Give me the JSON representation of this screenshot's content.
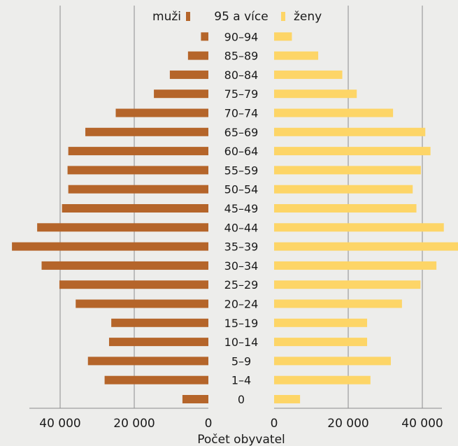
{
  "chart_data": {
    "type": "bar",
    "orientation": "horizontal-pyramid",
    "categories": [
      "0",
      "1–4",
      "5–9",
      "10–14",
      "15–19",
      "20–24",
      "25–29",
      "30–34",
      "35–39",
      "40–44",
      "45–49",
      "50–54",
      "55–59",
      "60–64",
      "65–69",
      "70–74",
      "75–79",
      "80–84",
      "85–89",
      "90–94",
      "95 a více"
    ],
    "series": [
      {
        "name": "muži",
        "side": "left",
        "color": "#b5652a",
        "values": [
          7000,
          28000,
          32500,
          26800,
          26200,
          35800,
          40200,
          45000,
          53000,
          46200,
          39500,
          37800,
          38000,
          37800,
          33200,
          25000,
          14700,
          10400,
          5500,
          2000,
          400
        ]
      },
      {
        "name": "ženy",
        "side": "right",
        "color": "#fdd567",
        "values": [
          7000,
          26000,
          31500,
          25100,
          25100,
          34500,
          39500,
          43800,
          50000,
          45800,
          38400,
          37400,
          39600,
          42200,
          40800,
          32100,
          22300,
          18400,
          11900,
          4800,
          700
        ]
      }
    ],
    "x_ticks": [
      "40 000",
      "20 000",
      "0",
      "0",
      "20 000",
      "40 000"
    ],
    "xlim": [
      0,
      50000
    ],
    "xlabel": "Počet obyvatel",
    "legend": {
      "position": "top",
      "entries": [
        "muži",
        "ženy"
      ]
    },
    "grid": true,
    "colors": {
      "background": "#ededeb",
      "grid": "#8c8c8c",
      "text": "#1a1a1a"
    }
  }
}
